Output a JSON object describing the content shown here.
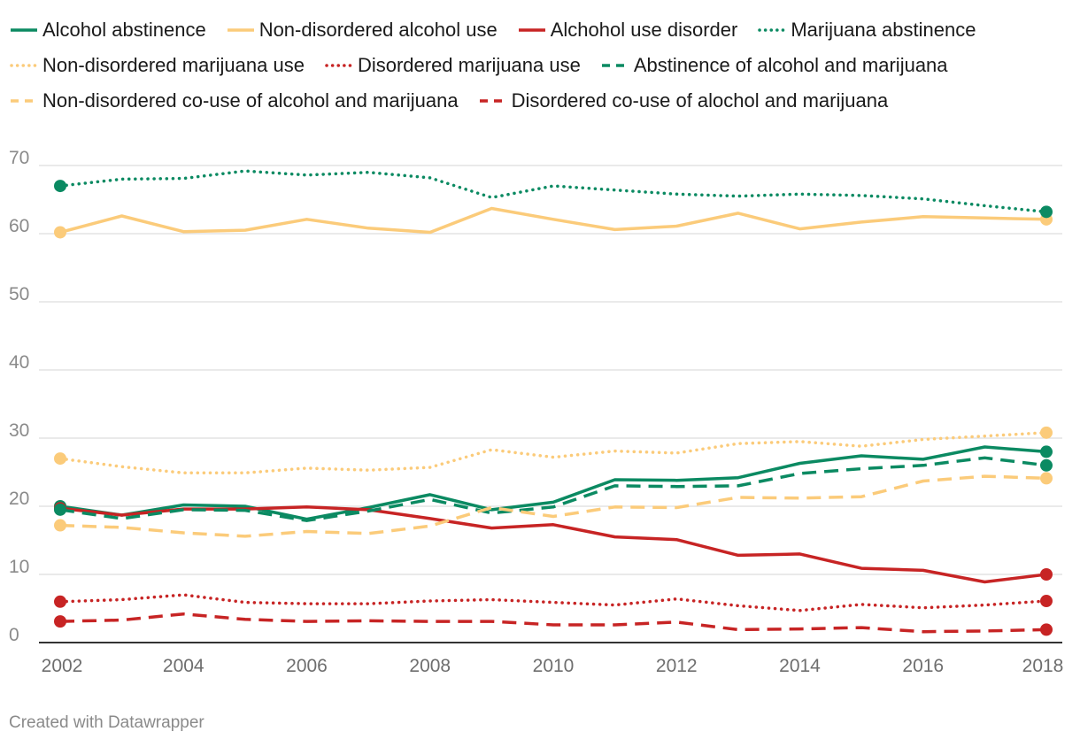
{
  "chart_data": {
    "type": "line",
    "x": [
      2002,
      2003,
      2004,
      2005,
      2006,
      2007,
      2008,
      2009,
      2010,
      2011,
      2012,
      2013,
      2014,
      2015,
      2016,
      2017,
      2018
    ],
    "x_tick_labels": [
      "2002",
      "2004",
      "2006",
      "2008",
      "2010",
      "2012",
      "2014",
      "2016",
      "2018"
    ],
    "y_tick_labels": [
      "0",
      "10",
      "20",
      "30",
      "40",
      "50",
      "60",
      "70"
    ],
    "ylim": [
      0,
      70
    ],
    "grid": true,
    "legend_position": "top",
    "series": [
      {
        "name": "Alcohol abstinence",
        "color": "#0b8a62",
        "style": "solid",
        "values": [
          20.0,
          18.7,
          20.2,
          20.0,
          18.1,
          19.8,
          21.7,
          19.5,
          20.6,
          23.9,
          23.8,
          24.2,
          26.3,
          27.4,
          26.9,
          28.7,
          28.0
        ]
      },
      {
        "name": "Non-disordered alcohol use",
        "color": "#fbcb7a",
        "style": "solid",
        "values": [
          60.2,
          62.6,
          60.3,
          60.5,
          62.1,
          60.8,
          60.2,
          63.7,
          62.1,
          60.6,
          61.1,
          63.0,
          60.7,
          61.7,
          62.5,
          62.3,
          62.1
        ]
      },
      {
        "name": "Alchohol use disorder",
        "color": "#c72424",
        "style": "solid",
        "values": [
          19.7,
          18.7,
          19.6,
          19.6,
          19.9,
          19.5,
          18.2,
          16.8,
          17.3,
          15.5,
          15.1,
          12.8,
          13.0,
          10.9,
          10.6,
          8.9,
          10.0
        ]
      },
      {
        "name": "Marijuana abstinence",
        "color": "#0b8a62",
        "style": "dotted",
        "values": [
          67.0,
          68.0,
          68.1,
          69.2,
          68.6,
          69.0,
          68.2,
          65.3,
          67.0,
          66.4,
          65.8,
          65.5,
          65.8,
          65.6,
          65.1,
          64.1,
          63.2
        ]
      },
      {
        "name": "Non-disordered marijuana use",
        "color": "#fbcb7a",
        "style": "dotted",
        "values": [
          27.0,
          25.8,
          24.9,
          24.9,
          25.6,
          25.3,
          25.7,
          28.3,
          27.2,
          28.1,
          27.8,
          29.2,
          29.5,
          28.8,
          29.8,
          30.3,
          30.8
        ]
      },
      {
        "name": "Disordered marijuana use",
        "color": "#c72424",
        "style": "dotted",
        "values": [
          6.0,
          6.3,
          7.0,
          5.9,
          5.7,
          5.7,
          6.1,
          6.3,
          5.9,
          5.5,
          6.4,
          5.4,
          4.7,
          5.6,
          5.1,
          5.5,
          6.1
        ]
      },
      {
        "name": "Abstinence of alcohol and marijuana",
        "color": "#0b8a62",
        "style": "dashed",
        "values": [
          19.5,
          18.2,
          19.5,
          19.4,
          17.9,
          19.3,
          21.0,
          19.0,
          19.9,
          23.0,
          22.9,
          23.0,
          24.8,
          25.5,
          26.0,
          27.1,
          26.0
        ]
      },
      {
        "name": "Non-disordered co-use of alcohol and marijuana",
        "color": "#fbcb7a",
        "style": "dashed",
        "values": [
          17.2,
          16.9,
          16.1,
          15.6,
          16.3,
          16.0,
          17.1,
          19.8,
          18.5,
          19.9,
          19.8,
          21.3,
          21.2,
          21.4,
          23.7,
          24.4,
          24.1
        ]
      },
      {
        "name": "Disordered co-use of alochol and marijuana",
        "color": "#c72424",
        "style": "dashed",
        "values": [
          3.1,
          3.3,
          4.2,
          3.4,
          3.1,
          3.2,
          3.1,
          3.1,
          2.6,
          2.6,
          3.0,
          1.9,
          2.0,
          2.2,
          1.6,
          1.7,
          1.9
        ]
      }
    ]
  },
  "credit": "Created with Datawrapper"
}
